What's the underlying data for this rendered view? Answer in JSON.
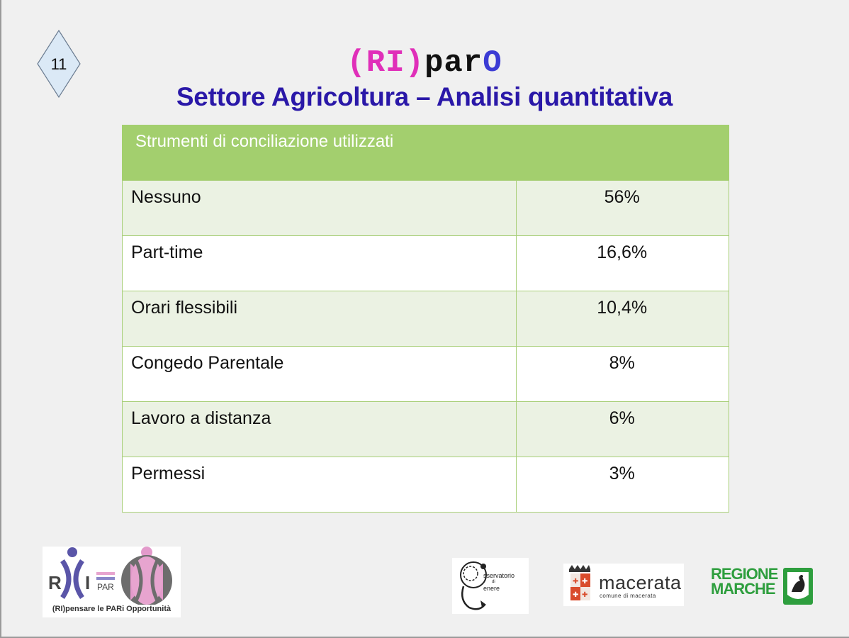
{
  "slide": {
    "number": "11",
    "brand": {
      "ri": "(RI)",
      "par": "par",
      "o": "O"
    },
    "subtitle": "Settore Agricoltura – Analisi quantitativa"
  },
  "table": {
    "header": "Strumenti di conciliazione utilizzati",
    "rows": [
      {
        "label": "Nessuno",
        "value": "56%"
      },
      {
        "label": "Part-time",
        "value": "16,6%"
      },
      {
        "label": "Orari flessibili",
        "value": "10,4%"
      },
      {
        "label": "Congedo Parentale",
        "value": "8%"
      },
      {
        "label": "Lavoro a distanza",
        "value": "6%"
      },
      {
        "label": "Permessi",
        "value": "3%"
      }
    ]
  },
  "logos": {
    "ripar": {
      "caption": "(RI)pensare le PARi Opportunità",
      "r": "R",
      "i": "I",
      "par": "PAR"
    },
    "osservatorio": {
      "line1": "sservatorio",
      "line2": "di",
      "line3": "enere"
    },
    "macerata": {
      "name": "macerata",
      "sub": "comune di macerata"
    },
    "regione": {
      "line1": "REGIONE",
      "line2": "MARCHE"
    }
  },
  "colors": {
    "header_green": "#a3cf6e",
    "row_tint": "#ebf2e3",
    "subtitle_blue": "#2a18a8",
    "brand_pink": "#e02fb9",
    "brand_blue": "#3b3bd4",
    "regione_green": "#2e9e3e"
  }
}
